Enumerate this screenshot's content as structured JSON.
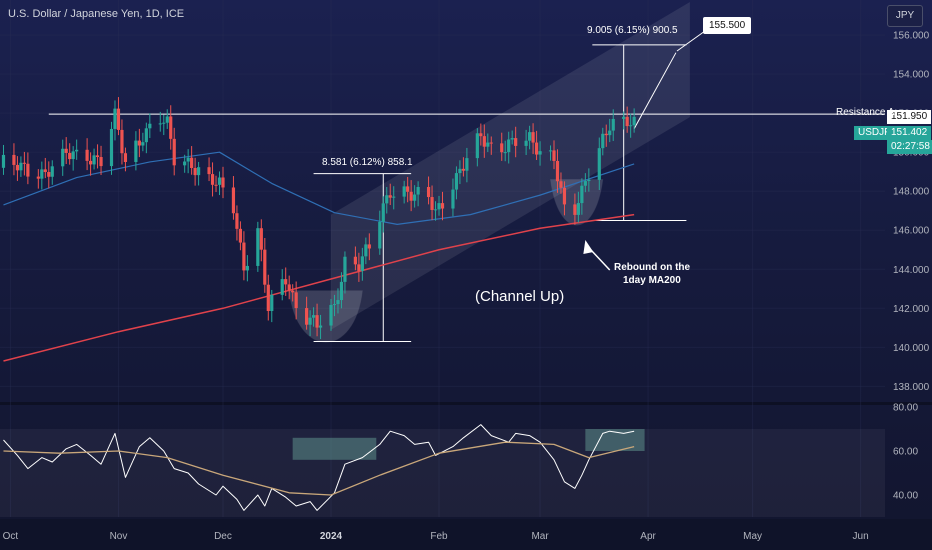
{
  "header": {
    "symbol_title": "U.S. Dollar / Japanese Yen, 1D, ICE",
    "currency_button": "JPY"
  },
  "price_tags": {
    "resistance_value": "151.950",
    "symbol": "USDJPY",
    "price": "151.402",
    "countdown": "02:27:58"
  },
  "annotations": {
    "resistance_label": "Resistance A",
    "measure_top": "9.005 (6.15%) 900.5",
    "measure_left": "8.581 (6.12%) 858.1",
    "target_callout": "155.500",
    "rebound_line1": "Rebound on the",
    "rebound_line2": "1day MA200",
    "channel_label": "(Channel Up)"
  },
  "colors": {
    "up_candle": "#26a69a",
    "down_candle": "#ef5350",
    "ma50": "#2f6fb5",
    "ma200": "#e0424b",
    "rsi_line": "#ffffff",
    "rsi_ma": "#c9a77a",
    "accent_tag": "#26a69a"
  },
  "chart_data": [
    {
      "type": "candlestick",
      "title": "U.S. Dollar / Japanese Yen, 1D, ICE",
      "y_axis": {
        "ticks": [
          138.0,
          140.0,
          142.0,
          144.0,
          146.0,
          148.0,
          150.0,
          152.0,
          154.0,
          156.0
        ],
        "tick_labels": [
          "138.000",
          "140.000",
          "142.000",
          "144.000",
          "146.000",
          "148.000",
          "150.000",
          "152.000",
          "154.000",
          "156.000"
        ],
        "ylim": [
          137.3,
          157.8
        ]
      },
      "x_axis": {
        "tick_labels": [
          "Oct",
          "Nov",
          "Dec",
          "2024",
          "Feb",
          "Mar",
          "Apr",
          "May",
          "Jun"
        ],
        "tick_dates": [
          "2023-10-01",
          "2023-11-01",
          "2023-12-01",
          "2024-01-01",
          "2024-02-01",
          "2024-03-01",
          "2024-04-01",
          "2024-05-01",
          "2024-06-01"
        ],
        "xlim": [
          "2023-09-28",
          "2024-06-08"
        ]
      },
      "ohlc_anchor_closes": [
        [
          "2023-09-29",
          149.4
        ],
        [
          "2023-10-05",
          149.1
        ],
        [
          "2023-10-11",
          149.0
        ],
        [
          "2023-10-17",
          149.8
        ],
        [
          "2023-10-23",
          149.9
        ],
        [
          "2023-10-27",
          149.6
        ],
        [
          "2023-10-31",
          151.7
        ],
        [
          "2023-11-03",
          149.4
        ],
        [
          "2023-11-08",
          151.0
        ],
        [
          "2023-11-13",
          151.7
        ],
        [
          "2023-11-15",
          151.3
        ],
        [
          "2023-11-17",
          149.6
        ],
        [
          "2023-11-22",
          149.5
        ],
        [
          "2023-11-27",
          148.6
        ],
        [
          "2023-11-30",
          148.2
        ],
        [
          "2023-12-04",
          147.2
        ],
        [
          "2023-12-07",
          144.2
        ],
        [
          "2023-12-11",
          146.0
        ],
        [
          "2023-12-14",
          141.9
        ],
        [
          "2023-12-19",
          143.6
        ],
        [
          "2023-12-22",
          142.2
        ],
        [
          "2023-12-28",
          141.0
        ],
        [
          "2024-01-02",
          142.0
        ],
        [
          "2024-01-05",
          144.5
        ],
        [
          "2024-01-09",
          144.3
        ],
        [
          "2024-01-12",
          145.0
        ],
        [
          "2024-01-16",
          147.1
        ],
        [
          "2024-01-18",
          148.1
        ],
        [
          "2024-01-22",
          148.1
        ],
        [
          "2024-01-25",
          147.7
        ],
        [
          "2024-01-29",
          147.6
        ],
        [
          "2024-01-31",
          146.9
        ],
        [
          "2024-02-05",
          148.5
        ],
        [
          "2024-02-08",
          149.3
        ],
        [
          "2024-02-13",
          150.7
        ],
        [
          "2024-02-16",
          150.3
        ],
        [
          "2024-02-22",
          150.5
        ],
        [
          "2024-02-27",
          150.5
        ],
        [
          "2024-03-01",
          150.1
        ],
        [
          "2024-03-05",
          149.9
        ],
        [
          "2024-03-08",
          147.0
        ],
        [
          "2024-03-11",
          146.9
        ],
        [
          "2024-03-13",
          147.8
        ],
        [
          "2024-03-15",
          149.0
        ],
        [
          "2024-03-19",
          150.8
        ],
        [
          "2024-03-21",
          151.5
        ],
        [
          "2024-03-25",
          151.4
        ],
        [
          "2024-03-28",
          151.4
        ]
      ],
      "series": [
        {
          "name": "",
          "type": "line",
          "role": "moving average (blue)",
          "points": [
            [
              "2023-09-29",
              147.3
            ],
            [
              "2023-10-20",
              148.7
            ],
            [
              "2023-11-10",
              149.5
            ],
            [
              "2023-11-30",
              150.0
            ],
            [
              "2023-12-15",
              148.4
            ],
            [
              "2024-01-02",
              146.9
            ],
            [
              "2024-01-20",
              146.3
            ],
            [
              "2024-02-10",
              146.8
            ],
            [
              "2024-03-01",
              147.8
            ],
            [
              "2024-03-28",
              149.4
            ]
          ]
        },
        {
          "name": "",
          "type": "line",
          "role": "1day MA200 (red)",
          "points": [
            [
              "2023-09-29",
              139.3
            ],
            [
              "2023-11-01",
              140.8
            ],
            [
              "2023-12-01",
              142.0
            ],
            [
              "2024-01-01",
              143.5
            ],
            [
              "2024-02-01",
              145.0
            ],
            [
              "2024-03-01",
              146.1
            ],
            [
              "2024-03-28",
              146.8
            ]
          ]
        }
      ],
      "levels": {
        "resistance_a": 151.95,
        "target": 155.5,
        "measure_left_from": 140.3,
        "measure_left_to": 148.9,
        "measure_top_from": 146.5,
        "measure_top_to": 155.5
      },
      "channel_up": {
        "lower_from": [
          "2024-01-01",
          140.9
        ],
        "lower_to": [
          "2024-04-15",
          151.5
        ],
        "upper_from": [
          "2024-01-01",
          146.8
        ],
        "upper_to": [
          "2024-04-15",
          157.9
        ]
      }
    },
    {
      "type": "line",
      "title": "",
      "y_axis": {
        "ticks": [
          40.0,
          60.0,
          80.0
        ],
        "tick_labels": [
          "40.00",
          "60.00",
          "80.00"
        ],
        "ylim": [
          30,
          80
        ]
      },
      "series": [
        {
          "name": "",
          "role": "oscillator (white)",
          "points": [
            [
              "2023-09-29",
              65
            ],
            [
              "2023-10-03",
              58
            ],
            [
              "2023-10-06",
              52
            ],
            [
              "2023-10-10",
              57
            ],
            [
              "2023-10-13",
              55
            ],
            [
              "2023-10-17",
              61
            ],
            [
              "2023-10-20",
              63
            ],
            [
              "2023-10-24",
              58
            ],
            [
              "2023-10-27",
              54
            ],
            [
              "2023-10-31",
              68
            ],
            [
              "2023-11-03",
              48
            ],
            [
              "2023-11-07",
              62
            ],
            [
              "2023-11-10",
              66
            ],
            [
              "2023-11-14",
              60
            ],
            [
              "2023-11-17",
              52
            ],
            [
              "2023-11-21",
              50
            ],
            [
              "2023-11-24",
              45
            ],
            [
              "2023-11-29",
              40
            ],
            [
              "2023-12-01",
              44
            ],
            [
              "2023-12-05",
              38
            ],
            [
              "2023-12-07",
              33
            ],
            [
              "2023-12-11",
              40
            ],
            [
              "2023-12-13",
              35
            ],
            [
              "2023-12-15",
              43
            ],
            [
              "2023-12-19",
              39
            ],
            [
              "2023-12-22",
              35
            ],
            [
              "2023-12-26",
              37
            ],
            [
              "2023-12-28",
              33
            ],
            [
              "2024-01-02",
              41
            ],
            [
              "2024-01-05",
              54
            ],
            [
              "2024-01-10",
              57
            ],
            [
              "2024-01-15",
              63
            ],
            [
              "2024-01-18",
              69
            ],
            [
              "2024-01-22",
              67
            ],
            [
              "2024-01-25",
              63
            ],
            [
              "2024-01-29",
              64
            ],
            [
              "2024-01-31",
              58
            ],
            [
              "2024-02-05",
              62
            ],
            [
              "2024-02-08",
              66
            ],
            [
              "2024-02-13",
              72
            ],
            [
              "2024-02-16",
              67
            ],
            [
              "2024-02-21",
              64
            ],
            [
              "2024-02-23",
              68
            ],
            [
              "2024-02-27",
              67
            ],
            [
              "2024-03-01",
              64
            ],
            [
              "2024-03-05",
              56
            ],
            [
              "2024-03-08",
              46
            ],
            [
              "2024-03-11",
              43
            ],
            [
              "2024-03-13",
              49
            ],
            [
              "2024-03-15",
              56
            ],
            [
              "2024-03-19",
              68
            ],
            [
              "2024-03-21",
              69
            ],
            [
              "2024-03-25",
              68
            ],
            [
              "2024-03-28",
              69
            ]
          ]
        },
        {
          "name": "",
          "role": "oscillator MA (tan)",
          "points": [
            [
              "2023-09-29",
              60
            ],
            [
              "2023-10-15",
              59
            ],
            [
              "2023-11-01",
              60
            ],
            [
              "2023-11-15",
              57
            ],
            [
              "2023-12-01",
              49
            ],
            [
              "2023-12-20",
              41
            ],
            [
              "2024-01-01",
              40
            ],
            [
              "2024-01-15",
              49
            ],
            [
              "2024-02-01",
              59
            ],
            [
              "2024-02-20",
              64
            ],
            [
              "2024-03-05",
              63
            ],
            [
              "2024-03-15",
              57
            ],
            [
              "2024-03-28",
              62
            ]
          ]
        }
      ]
    }
  ]
}
